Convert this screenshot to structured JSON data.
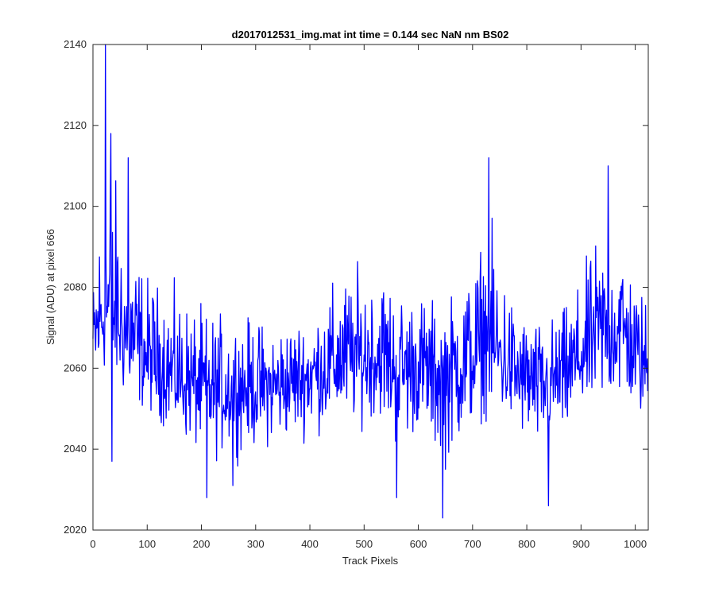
{
  "chart_data": {
    "type": "line",
    "title": "d2017012531_img.mat int time = 0.144 sec  NaN nm BS02",
    "xlabel": "Track Pixels",
    "ylabel": "Signal (ADU) at pixel 666",
    "xlim": [
      0,
      1024
    ],
    "ylim": [
      2020,
      2140
    ],
    "xticks": [
      0,
      100,
      200,
      300,
      400,
      500,
      600,
      700,
      800,
      900,
      1000
    ],
    "yticks": [
      2020,
      2040,
      2060,
      2080,
      2100,
      2120,
      2140
    ],
    "grid": false,
    "series": [
      {
        "name": "signal",
        "color": "#0000ff",
        "n_points": 1024,
        "envelope": [
          {
            "x": 0,
            "low": 2045,
            "high": 2090,
            "mean": 2066
          },
          {
            "x": 25,
            "low": 2050,
            "high": 2140,
            "mean": 2075
          },
          {
            "x": 60,
            "low": 2042,
            "high": 2112,
            "mean": 2068
          },
          {
            "x": 100,
            "low": 2042,
            "high": 2095,
            "mean": 2062
          },
          {
            "x": 150,
            "low": 2036,
            "high": 2090,
            "mean": 2058
          },
          {
            "x": 210,
            "low": 2028,
            "high": 2085,
            "mean": 2054
          },
          {
            "x": 260,
            "low": 2031,
            "high": 2083,
            "mean": 2055
          },
          {
            "x": 330,
            "low": 2033,
            "high": 2080,
            "mean": 2055
          },
          {
            "x": 400,
            "low": 2036,
            "high": 2082,
            "mean": 2058
          },
          {
            "x": 460,
            "low": 2036,
            "high": 2095,
            "mean": 2062
          },
          {
            "x": 530,
            "low": 2040,
            "high": 2100,
            "mean": 2062
          },
          {
            "x": 560,
            "low": 2028,
            "high": 2090,
            "mean": 2060
          },
          {
            "x": 600,
            "low": 2036,
            "high": 2090,
            "mean": 2060
          },
          {
            "x": 645,
            "low": 2023,
            "high": 2085,
            "mean": 2058
          },
          {
            "x": 700,
            "low": 2036,
            "high": 2100,
            "mean": 2062
          },
          {
            "x": 730,
            "low": 2040,
            "high": 2112,
            "mean": 2066
          },
          {
            "x": 780,
            "low": 2036,
            "high": 2085,
            "mean": 2058
          },
          {
            "x": 830,
            "low": 2028,
            "high": 2080,
            "mean": 2055
          },
          {
            "x": 880,
            "low": 2033,
            "high": 2085,
            "mean": 2060
          },
          {
            "x": 930,
            "low": 2040,
            "high": 2105,
            "mean": 2068
          },
          {
            "x": 970,
            "low": 2040,
            "high": 2110,
            "mean": 2070
          },
          {
            "x": 1000,
            "low": 2040,
            "high": 2090,
            "mean": 2064
          },
          {
            "x": 1023,
            "low": 2036,
            "high": 2088,
            "mean": 2060
          }
        ],
        "notable_points": [
          {
            "x": 23,
            "y": 2140
          },
          {
            "x": 33,
            "y": 2118
          },
          {
            "x": 35,
            "y": 2037
          },
          {
            "x": 65,
            "y": 2112
          },
          {
            "x": 210,
            "y": 2028
          },
          {
            "x": 258,
            "y": 2031
          },
          {
            "x": 560,
            "y": 2028
          },
          {
            "x": 645,
            "y": 2023
          },
          {
            "x": 730,
            "y": 2112
          },
          {
            "x": 840,
            "y": 2026
          },
          {
            "x": 950,
            "y": 2110
          }
        ]
      }
    ]
  }
}
